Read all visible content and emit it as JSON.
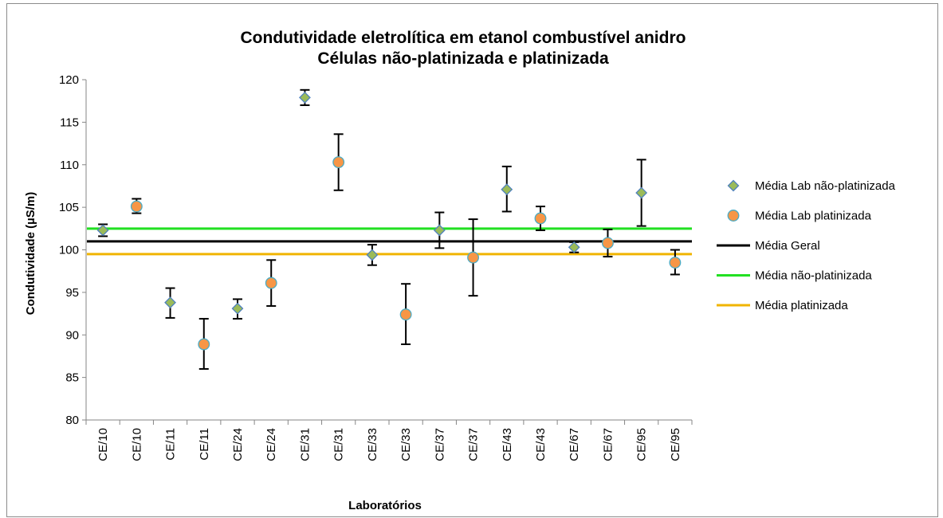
{
  "chart_data": {
    "type": "scatter",
    "title": [
      "Condutividade eletrolítica em etanol combustível anidro",
      "Células não-platinizada e platinizada"
    ],
    "xlabel": "Laboratórios",
    "ylabel": "Condutividade (µS/m)",
    "ylim": [
      80,
      120
    ],
    "yticks": [
      80,
      85,
      90,
      95,
      100,
      105,
      110,
      115,
      120
    ],
    "categories": [
      "CE/10",
      "CE/10",
      "CE/11",
      "CE/11",
      "CE/24",
      "CE/24",
      "CE/31",
      "CE/31",
      "CE/33",
      "CE/33",
      "CE/37",
      "CE/37",
      "CE/43",
      "CE/43",
      "CE/67",
      "CE/67",
      "CE/95",
      "CE/95"
    ],
    "legend_position": "right",
    "grid": false,
    "series": [
      {
        "name": "Média Lab não-platinizada",
        "kind": "points",
        "marker": "diamond",
        "color": "#9bbb59",
        "edge": "#4f81bd",
        "points": [
          {
            "x": 1,
            "y": 102.3,
            "low": 101.6,
            "high": 103.0
          },
          {
            "x": 3,
            "y": 93.8,
            "low": 92.0,
            "high": 95.5
          },
          {
            "x": 5,
            "y": 93.1,
            "low": 91.9,
            "high": 94.2
          },
          {
            "x": 7,
            "y": 117.9,
            "low": 117.0,
            "high": 118.8
          },
          {
            "x": 9,
            "y": 99.4,
            "low": 98.2,
            "high": 100.6
          },
          {
            "x": 11,
            "y": 102.3,
            "low": 100.2,
            "high": 104.4
          },
          {
            "x": 13,
            "y": 107.1,
            "low": 104.5,
            "high": 109.8
          },
          {
            "x": 15,
            "y": 100.3,
            "low": 99.7,
            "high": 100.9
          },
          {
            "x": 17,
            "y": 106.7,
            "low": 102.8,
            "high": 110.6
          }
        ]
      },
      {
        "name": "Média Lab platinizada",
        "kind": "points",
        "marker": "circle",
        "color": "#f79646",
        "edge": "#4bacc6",
        "points": [
          {
            "x": 2,
            "y": 105.1,
            "low": 104.3,
            "high": 106.0
          },
          {
            "x": 4,
            "y": 88.9,
            "low": 86.0,
            "high": 91.9
          },
          {
            "x": 6,
            "y": 96.1,
            "low": 93.4,
            "high": 98.8
          },
          {
            "x": 8,
            "y": 110.3,
            "low": 107.0,
            "high": 113.6
          },
          {
            "x": 10,
            "y": 92.4,
            "low": 88.9,
            "high": 96.0
          },
          {
            "x": 12,
            "y": 99.1,
            "low": 94.6,
            "high": 103.6
          },
          {
            "x": 14,
            "y": 103.7,
            "low": 102.3,
            "high": 105.1
          },
          {
            "x": 16,
            "y": 100.8,
            "low": 99.2,
            "high": 102.4
          },
          {
            "x": 18,
            "y": 98.5,
            "low": 97.1,
            "high": 100.0
          }
        ]
      },
      {
        "name": "Média Geral",
        "kind": "hline",
        "y": 101.0,
        "color": "#000000"
      },
      {
        "name": "Média não-platinizada",
        "kind": "hline",
        "y": 102.5,
        "color": "#22e022"
      },
      {
        "name": "Média platinizada",
        "kind": "hline",
        "y": 99.5,
        "color": "#f0b400"
      }
    ]
  }
}
